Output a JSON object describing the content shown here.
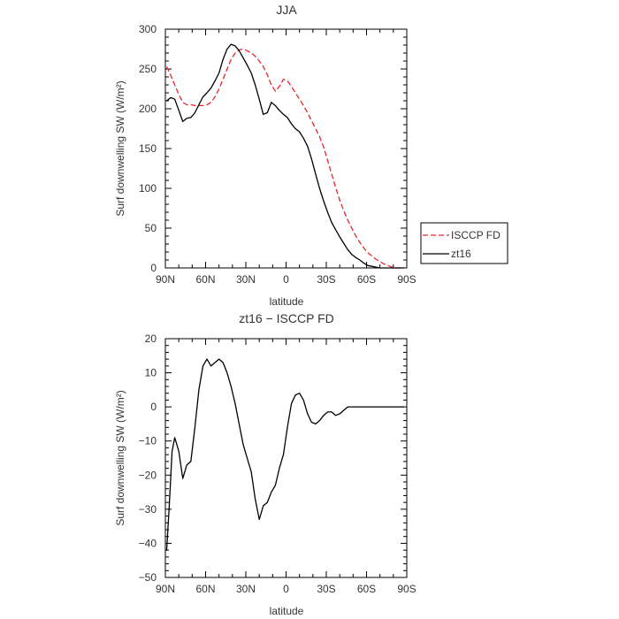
{
  "chart_data": [
    {
      "type": "line",
      "title": "JJA",
      "xlabel": "latitude",
      "ylabel": "Surf downwelling SW (W/m²)",
      "xlim": [
        90,
        -90
      ],
      "ylim": [
        0,
        300
      ],
      "x_ticks": [
        90,
        60,
        30,
        0,
        -30,
        -60,
        -90
      ],
      "x_tick_labels": [
        "90N",
        "60N",
        "30N",
        "0",
        "30S",
        "60S",
        "90S"
      ],
      "y_ticks": [
        0,
        50,
        100,
        150,
        200,
        250,
        300
      ],
      "y_tick_labels": [
        "0",
        "50",
        "100",
        "150",
        "200",
        "250",
        "300"
      ],
      "legend_position": "outside-right",
      "series": [
        {
          "name": "ISCCP FD",
          "color": "#e8262a",
          "dash": "dashed",
          "x": [
            89,
            86,
            83,
            80,
            77,
            74,
            71,
            68,
            65,
            62,
            59,
            56,
            53,
            50,
            47,
            44,
            41,
            38,
            35,
            32,
            29,
            26,
            23,
            20,
            17,
            14,
            11,
            8,
            5,
            2,
            -1,
            -4,
            -7,
            -10,
            -13,
            -16,
            -19,
            -22,
            -25,
            -28,
            -31,
            -34,
            -37,
            -40,
            -43,
            -46,
            -49,
            -52,
            -55,
            -58,
            -61,
            -64,
            -67,
            -70,
            -73,
            -76,
            -79,
            -82,
            -85,
            -88
          ],
          "y": [
            253,
            242,
            230,
            218,
            208,
            205,
            205,
            204,
            204,
            204,
            205,
            208,
            215,
            225,
            237,
            250,
            262,
            270,
            274,
            275,
            273,
            270,
            266,
            260,
            253,
            243,
            230,
            222,
            228,
            237,
            235,
            228,
            220,
            212,
            204,
            195,
            185,
            175,
            165,
            152,
            135,
            118,
            101,
            85,
            72,
            60,
            50,
            40,
            32,
            25,
            19,
            15,
            11,
            8,
            5,
            3,
            1,
            0,
            0,
            0
          ]
        },
        {
          "name": "zt16",
          "color": "#000000",
          "dash": "solid",
          "x": [
            89,
            86,
            83,
            80,
            77,
            74,
            71,
            68,
            65,
            62,
            59,
            56,
            53,
            50,
            47,
            44,
            41,
            38,
            35,
            32,
            29,
            26,
            23,
            20,
            17,
            14,
            11,
            8,
            5,
            2,
            -1,
            -4,
            -7,
            -10,
            -13,
            -16,
            -19,
            -22,
            -25,
            -28,
            -31,
            -34,
            -37,
            -40,
            -43,
            -46,
            -49,
            -52,
            -55,
            -58,
            -61,
            -64,
            -67,
            -70,
            -73,
            -76,
            -79,
            -82,
            -85,
            -88
          ],
          "y": [
            210,
            214,
            212,
            198,
            184,
            188,
            189,
            195,
            205,
            215,
            220,
            226,
            235,
            245,
            262,
            275,
            281,
            279,
            273,
            264,
            255,
            245,
            230,
            212,
            193,
            195,
            208,
            204,
            198,
            193,
            189,
            181,
            175,
            171,
            163,
            153,
            137,
            118,
            100,
            84,
            70,
            57,
            48,
            39,
            31,
            23,
            17,
            13,
            10,
            6,
            3,
            2,
            1,
            0,
            0,
            0,
            0,
            0,
            0,
            0
          ]
        }
      ]
    },
    {
      "type": "line",
      "title": "zt16 − ISCCP FD",
      "xlabel": "latitude",
      "ylabel": "Surf downwelling SW (W/m²)",
      "xlim": [
        90,
        -90
      ],
      "ylim": [
        -50,
        20
      ],
      "x_ticks": [
        90,
        60,
        30,
        0,
        -30,
        -60,
        -90
      ],
      "x_tick_labels": [
        "90N",
        "60N",
        "30N",
        "0",
        "30S",
        "60S",
        "90S"
      ],
      "y_ticks": [
        20,
        10,
        0,
        -10,
        -20,
        -30,
        -40,
        -50
      ],
      "y_tick_labels": [
        "20",
        "10",
        "0",
        "−10",
        "−20",
        "−30",
        "−40",
        "−50"
      ],
      "series": [
        {
          "name": "",
          "color": "#000000",
          "dash": "solid",
          "x": [
            89,
            87,
            85,
            83,
            80,
            77,
            74,
            71,
            68,
            65,
            62,
            59,
            56,
            53,
            50,
            47,
            44,
            41,
            38,
            35,
            32,
            29,
            26,
            23,
            20,
            17,
            14,
            11,
            8,
            5,
            2,
            -1,
            -4,
            -7,
            -10,
            -13,
            -16,
            -19,
            -22,
            -25,
            -28,
            -31,
            -34,
            -37,
            -40,
            -43,
            -46,
            -49,
            -52,
            -55,
            -58,
            -61,
            -64,
            -67,
            -70,
            -73,
            -76,
            -79,
            -82,
            -85,
            -88
          ],
          "y": [
            -42,
            -28,
            -13,
            -9,
            -13,
            -21,
            -17,
            -16,
            -6,
            5,
            12,
            14,
            12,
            13,
            14,
            13,
            10,
            6,
            1,
            -5,
            -11,
            -15,
            -19,
            -27,
            -33,
            -29,
            -28,
            -25,
            -23,
            -18,
            -14,
            -6,
            1,
            3.5,
            4,
            2,
            -2,
            -4.5,
            -5,
            -4,
            -2.5,
            -1.5,
            -1.5,
            -2.5,
            -2,
            -1,
            0,
            0,
            0,
            0,
            0,
            0,
            0,
            0,
            0,
            0,
            0,
            0,
            0,
            0,
            0
          ]
        }
      ]
    }
  ]
}
